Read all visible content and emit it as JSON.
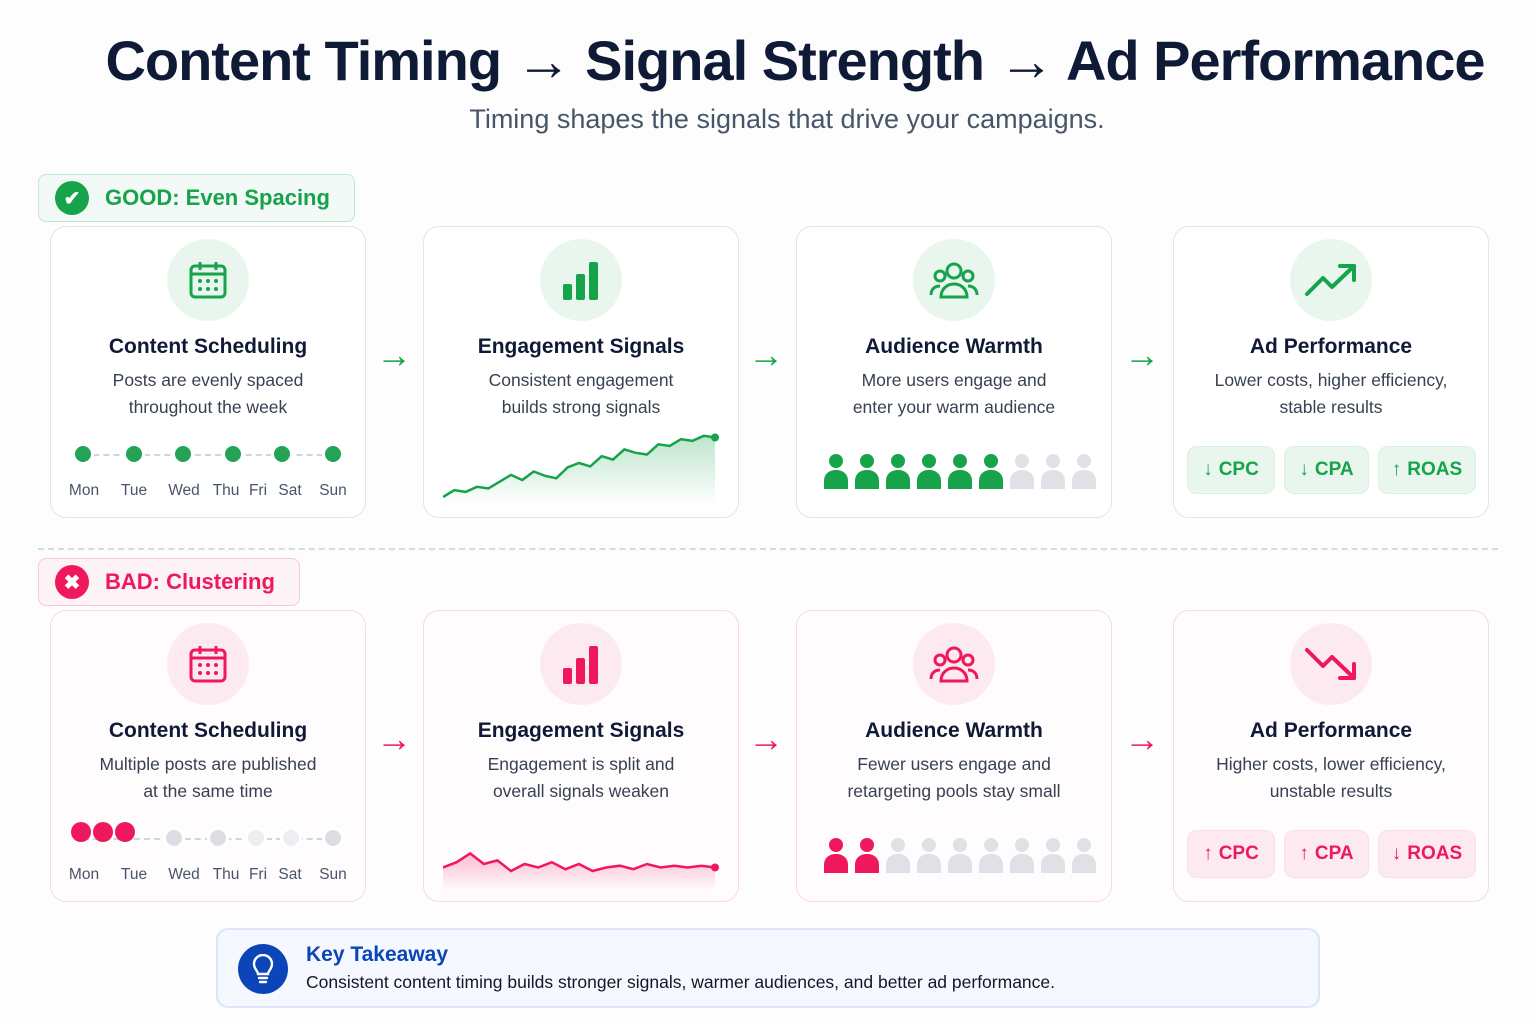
{
  "header": {
    "title": "Content Timing → Signal Strength → Ad Performance",
    "subtitle": "Timing shapes the signals that drive your campaigns."
  },
  "days": [
    "Mon",
    "Tue",
    "Wed",
    "Thu",
    "Fri",
    "Sat",
    "Sun"
  ],
  "rows": [
    {
      "key": "good",
      "badge": "GOOD: Even Spacing",
      "badge_icon": "check-icon",
      "accent": "#16a34a",
      "light": "#e8f6ee",
      "border": "#bfe8cf",
      "cards": [
        {
          "icon": "calendar-icon",
          "title": "Content Scheduling",
          "desc": [
            "Posts are evenly spaced",
            "throughout the week"
          ]
        },
        {
          "icon": "bar-chart-icon",
          "title": "Engagement Signals",
          "desc": [
            "Consistent engagement",
            "builds strong signals"
          ]
        },
        {
          "icon": "users-icon",
          "title": "Audience Warmth",
          "desc": [
            "More users engage and",
            "enter your warm audience"
          ],
          "audience_filled": 6,
          "audience_total": 9
        },
        {
          "icon": "trend-up-icon",
          "title": "Ad Performance",
          "desc": [
            "Lower costs, higher efficiency,",
            "stable results"
          ],
          "metrics": [
            {
              "arrow": "↓",
              "label": "CPC"
            },
            {
              "arrow": "↓",
              "label": "CPA"
            },
            {
              "arrow": "↑",
              "label": "ROAS"
            }
          ]
        }
      ]
    },
    {
      "key": "bad",
      "badge": "BAD: Clustering",
      "badge_icon": "x-icon",
      "accent": "#f0185c",
      "light": "#fdeaf0",
      "border": "#f8c7d6",
      "cards": [
        {
          "icon": "calendar-icon",
          "title": "Content Scheduling",
          "desc": [
            "Multiple posts are published",
            "at the same time"
          ]
        },
        {
          "icon": "bar-chart-icon",
          "title": "Engagement Signals",
          "desc": [
            "Engagement is split and",
            "overall signals weaken"
          ]
        },
        {
          "icon": "users-icon",
          "title": "Audience Warmth",
          "desc": [
            "Fewer users engage and",
            "retargeting pools stay small"
          ],
          "audience_filled": 2,
          "audience_total": 9
        },
        {
          "icon": "trend-down-icon",
          "title": "Ad Performance",
          "desc": [
            "Higher costs, lower efficiency,",
            "unstable results"
          ],
          "metrics": [
            {
              "arrow": "↑",
              "label": "CPC"
            },
            {
              "arrow": "↑",
              "label": "CPA"
            },
            {
              "arrow": "↓",
              "label": "ROAS"
            }
          ]
        }
      ]
    }
  ],
  "takeaway": {
    "title": "Key Takeaway",
    "text": "Consistent content timing builds stronger signals, warmer audiences, and better ad performance.",
    "icon": "lightbulb-icon"
  }
}
